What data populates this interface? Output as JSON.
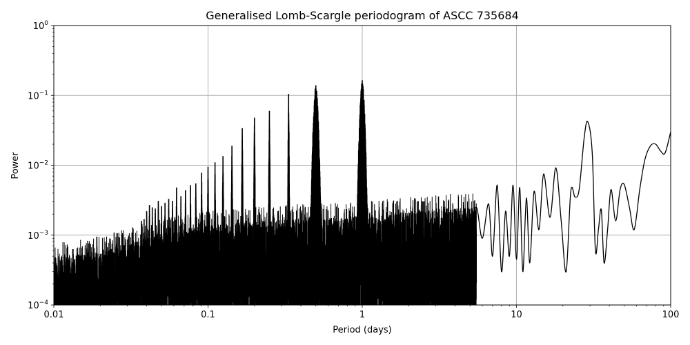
{
  "chart_data": {
    "type": "line",
    "title": "Generalised Lomb-Scargle periodogram of ASCC 735684",
    "xlabel": "Period (days)",
    "ylabel": "Power",
    "xscale": "log",
    "yscale": "log",
    "xlim": [
      0.01,
      100
    ],
    "ylim": [
      0.0001,
      1
    ],
    "grid": true,
    "legend": null,
    "x_ticks": [
      {
        "value": 0.01,
        "label": "0.01"
      },
      {
        "value": 0.1,
        "label": "0.1"
      },
      {
        "value": 1,
        "label": "1"
      },
      {
        "value": 10,
        "label": "10"
      },
      {
        "value": 100,
        "label": "100"
      }
    ],
    "y_ticks": [
      {
        "value": 0.0001,
        "base": "10",
        "exp": "−4"
      },
      {
        "value": 0.001,
        "base": "10",
        "exp": "−3"
      },
      {
        "value": 0.01,
        "base": "10",
        "exp": "−2"
      },
      {
        "value": 0.1,
        "base": "10",
        "exp": "−1"
      },
      {
        "value": 1,
        "base": "10",
        "exp": "0"
      }
    ],
    "line_color": "#000000",
    "grid_color": "#b0b0b0",
    "peaks": [
      {
        "period": 1.0,
        "power": 0.165
      },
      {
        "period": 0.5,
        "power": 0.14
      },
      {
        "period": 0.333,
        "power": 0.105
      },
      {
        "period": 0.25,
        "power": 0.06
      },
      {
        "period": 0.2,
        "power": 0.048
      },
      {
        "period": 0.1667,
        "power": 0.034
      },
      {
        "period": 0.1429,
        "power": 0.019
      },
      {
        "period": 0.125,
        "power": 0.0135
      },
      {
        "period": 0.111,
        "power": 0.011
      },
      {
        "period": 0.1,
        "power": 0.0095
      },
      {
        "period": 0.0909,
        "power": 0.0078
      },
      {
        "period": 0.0833,
        "power": 0.0055
      },
      {
        "period": 0.0769,
        "power": 0.0052
      },
      {
        "period": 0.0714,
        "power": 0.0044
      },
      {
        "period": 0.0667,
        "power": 0.0036
      },
      {
        "period": 0.0625,
        "power": 0.0048
      },
      {
        "period": 0.0588,
        "power": 0.0031
      },
      {
        "period": 0.0556,
        "power": 0.0033
      },
      {
        "period": 0.0526,
        "power": 0.0029
      },
      {
        "period": 0.05,
        "power": 0.0026
      },
      {
        "period": 0.0476,
        "power": 0.0031
      },
      {
        "period": 0.0455,
        "power": 0.0024
      },
      {
        "period": 0.0435,
        "power": 0.0025
      },
      {
        "period": 0.0417,
        "power": 0.0027
      },
      {
        "period": 0.04,
        "power": 0.0022
      },
      {
        "period": 0.0385,
        "power": 0.0017
      },
      {
        "period": 0.037,
        "power": 0.0016
      },
      {
        "period": 0.019,
        "power": 0.00095
      }
    ],
    "long_period_curve": {
      "period": [
        5.0,
        5.5,
        6.0,
        6.6,
        7.0,
        7.5,
        8.0,
        8.5,
        9.0,
        9.5,
        10.0,
        10.5,
        11.0,
        11.6,
        12.2,
        13.0,
        14.0,
        15.0,
        16.5,
        18.0,
        19.5,
        21.0,
        22.5,
        24.0,
        25.5,
        27.5,
        29.0,
        31.0,
        32.5,
        34.0,
        35.5,
        37.0,
        39.0,
        41.0,
        44.0,
        47.0,
        50.0,
        54.0,
        58.0,
        63.0,
        68.0,
        74.0,
        80.0,
        86.0,
        92.0,
        100.0
      ],
      "power": [
        0.0012,
        0.0025,
        0.0009,
        0.0028,
        0.0005,
        0.0052,
        0.0003,
        0.0022,
        0.0005,
        0.0052,
        0.00045,
        0.0048,
        0.0003,
        0.0034,
        0.0004,
        0.0042,
        0.0012,
        0.0075,
        0.0018,
        0.0092,
        0.0016,
        0.0003,
        0.0042,
        0.0035,
        0.0045,
        0.025,
        0.042,
        0.015,
        0.0006,
        0.0012,
        0.0023,
        0.0004,
        0.0012,
        0.0045,
        0.0016,
        0.0045,
        0.0053,
        0.0025,
        0.0012,
        0.0045,
        0.012,
        0.019,
        0.02,
        0.016,
        0.015,
        0.03
      ]
    },
    "noise_floor": {
      "description": "dense noise filling 1e-4 up to ~5e-4 at P=0.01 rising to ~2e-3 near P=1-3 days, continuing to ~5 days",
      "envelope_period": [
        0.01,
        0.02,
        0.03,
        0.05,
        0.1,
        0.3,
        1.0,
        2.0,
        3.0,
        5.0
      ],
      "envelope_power": [
        0.0005,
        0.0006,
        0.0008,
        0.0011,
        0.0014,
        0.0017,
        0.0019,
        0.0022,
        0.0024,
        0.0025
      ]
    }
  }
}
